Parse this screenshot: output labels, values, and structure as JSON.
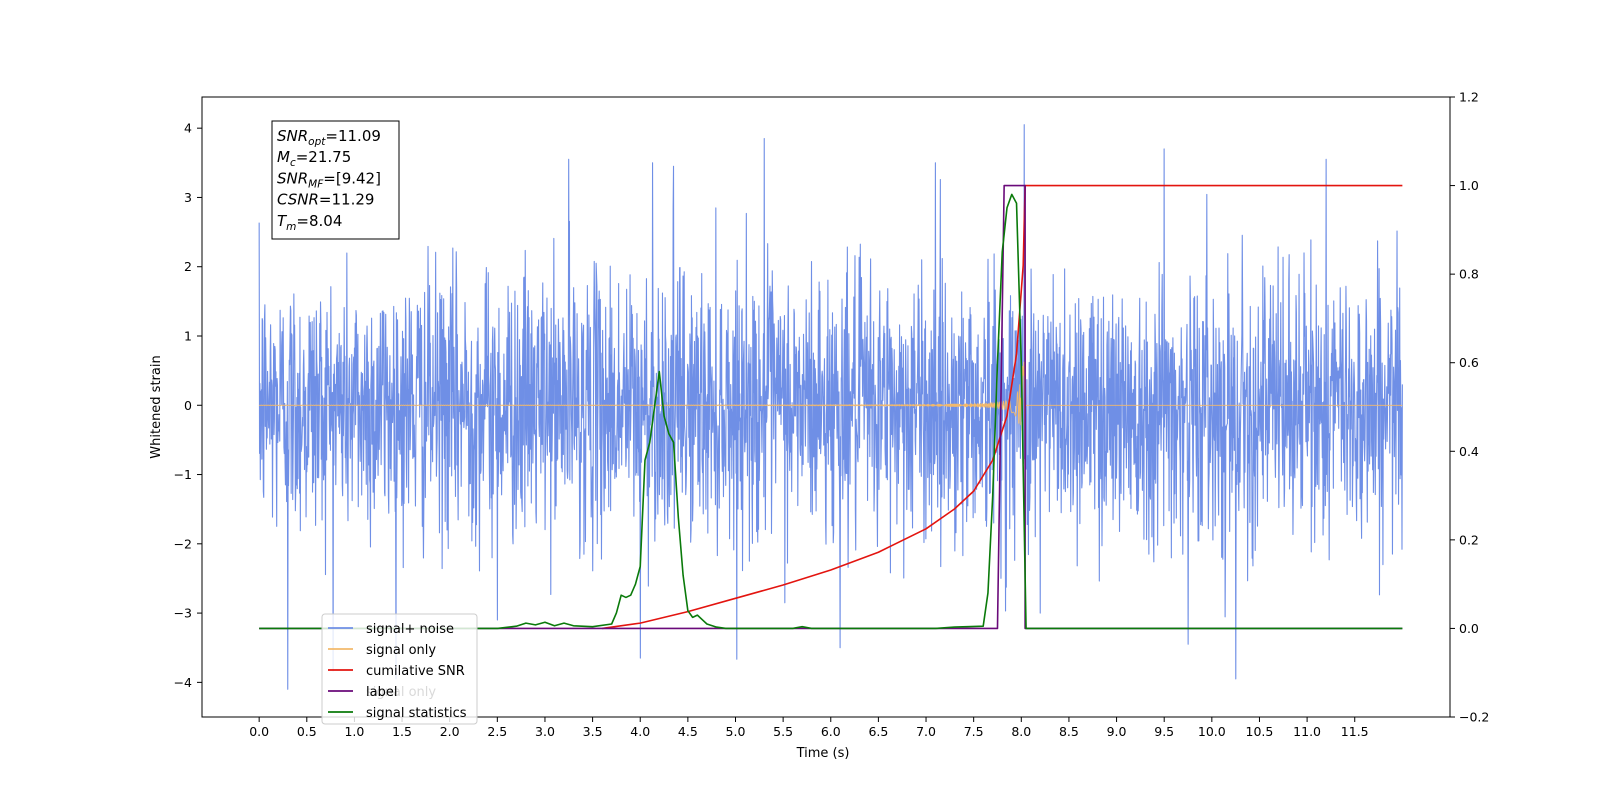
{
  "chart_data": {
    "type": "line",
    "xlabel": "Time (s)",
    "ylabel": "Whitened strain",
    "y2label": "",
    "xlim": [
      -0.6,
      12.5
    ],
    "ylim": [
      -4.5,
      4.45
    ],
    "y2lim": [
      -0.2,
      1.2
    ],
    "xticks": [
      "0.0",
      "0.5",
      "1.0",
      "1.5",
      "2.0",
      "2.5",
      "3.0",
      "3.5",
      "4.0",
      "4.5",
      "5.0",
      "5.5",
      "6.0",
      "6.5",
      "7.0",
      "7.5",
      "8.0",
      "8.5",
      "9.0",
      "9.5",
      "10.0",
      "10.5",
      "11.0",
      "11.5"
    ],
    "yticks": [
      "4",
      "3",
      "2",
      "1",
      "0",
      "−1",
      "−2",
      "−3",
      "−4"
    ],
    "y2ticks": [
      "1.2",
      "1.0",
      "0.8",
      "0.6",
      "0.4",
      "0.2",
      "0.0",
      "−0.2"
    ],
    "grid": false,
    "legend_position": "lower-left",
    "annotation": {
      "lines": [
        {
          "main": "SNR",
          "sub": "opt",
          "value": "=11.09"
        },
        {
          "main": "M",
          "sub": "c",
          "value": "=21.75"
        },
        {
          "main": "SNR",
          "sub": "MF",
          "value": "=[9.42]"
        },
        {
          "main": "CSNR",
          "sub": "",
          "value": "=11.29"
        },
        {
          "main": "T",
          "sub": "m",
          "value": "=8.04"
        }
      ]
    },
    "series": [
      {
        "name": "signal+ noise",
        "axis": "left",
        "color": "#6f8fe6",
        "kind": "noise",
        "t_start": 0.0,
        "t_end": 12.0,
        "std": 0.95,
        "peaks": [
          [
            0.3,
            -4.1
          ],
          [
            2.5,
            -3.1
          ],
          [
            3.25,
            3.55
          ],
          [
            4.0,
            -3.65
          ],
          [
            4.13,
            3.5
          ],
          [
            4.35,
            3.45
          ],
          [
            5.3,
            3.85
          ],
          [
            6.1,
            -3.5
          ],
          [
            7.1,
            3.5
          ],
          [
            8.03,
            4.05
          ],
          [
            8.2,
            -3.0
          ],
          [
            9.5,
            3.7
          ],
          [
            9.75,
            -3.45
          ],
          [
            10.25,
            -3.95
          ],
          [
            11.2,
            3.55
          ]
        ]
      },
      {
        "name": "signal only",
        "axis": "left",
        "color": "#f3b96b",
        "kind": "chirp",
        "t_start": 0.0,
        "t_end": 12.0,
        "merger_time": 8.04
      },
      {
        "name": "cumilative SNR",
        "axis": "right",
        "color": "#e3140f",
        "x": [
          3.6,
          4.0,
          4.5,
          5.0,
          5.5,
          6.0,
          6.5,
          7.0,
          7.3,
          7.5,
          7.7,
          7.85,
          7.95,
          8.02,
          8.04,
          12.0
        ],
        "y": [
          0.0,
          0.012,
          0.038,
          0.068,
          0.098,
          0.132,
          0.172,
          0.225,
          0.27,
          0.31,
          0.38,
          0.48,
          0.62,
          0.82,
          1.0,
          1.0
        ]
      },
      {
        "name": "label",
        "axis": "right",
        "color": "#6a0a7a",
        "x": [
          0.0,
          7.75,
          7.75,
          7.82,
          7.82,
          8.04,
          8.04,
          12.0
        ],
        "y": [
          0.0,
          0.0,
          0.0,
          1.0,
          1.0,
          1.0,
          0.0,
          0.0
        ]
      },
      {
        "name": "signal statistics",
        "axis": "right",
        "color": "#0a7a0a",
        "x": [
          0.0,
          2.5,
          2.7,
          2.8,
          2.9,
          3.0,
          3.1,
          3.2,
          3.3,
          3.5,
          3.7,
          3.75,
          3.8,
          3.85,
          3.9,
          3.95,
          4.0,
          4.05,
          4.1,
          4.15,
          4.2,
          4.25,
          4.3,
          4.35,
          4.4,
          4.45,
          4.5,
          4.55,
          4.6,
          4.65,
          4.7,
          4.8,
          4.9,
          5.0,
          5.6,
          5.7,
          5.8,
          5.9,
          7.1,
          7.3,
          7.6,
          7.65,
          7.7,
          7.75,
          7.8,
          7.85,
          7.9,
          7.95,
          8.0,
          8.05,
          8.1,
          12.0
        ],
        "y": [
          0.0,
          0.0,
          0.005,
          0.012,
          0.008,
          0.014,
          0.006,
          0.012,
          0.006,
          0.004,
          0.01,
          0.035,
          0.075,
          0.07,
          0.075,
          0.1,
          0.14,
          0.38,
          0.42,
          0.5,
          0.58,
          0.48,
          0.44,
          0.42,
          0.25,
          0.12,
          0.04,
          0.025,
          0.03,
          0.02,
          0.01,
          0.003,
          0.0,
          0.0,
          0.0,
          0.004,
          0.0,
          0.0,
          0.0,
          0.003,
          0.005,
          0.08,
          0.3,
          0.6,
          0.85,
          0.95,
          0.98,
          0.96,
          0.6,
          0.0,
          0.0,
          0.0
        ]
      }
    ],
    "legend_items": [
      "signal+ noise",
      "signal only",
      "cumilative SNR",
      "label",
      "signal statistics"
    ],
    "legend_ghost": {
      "text": "signal only",
      "color": "#d9d9d9"
    }
  }
}
